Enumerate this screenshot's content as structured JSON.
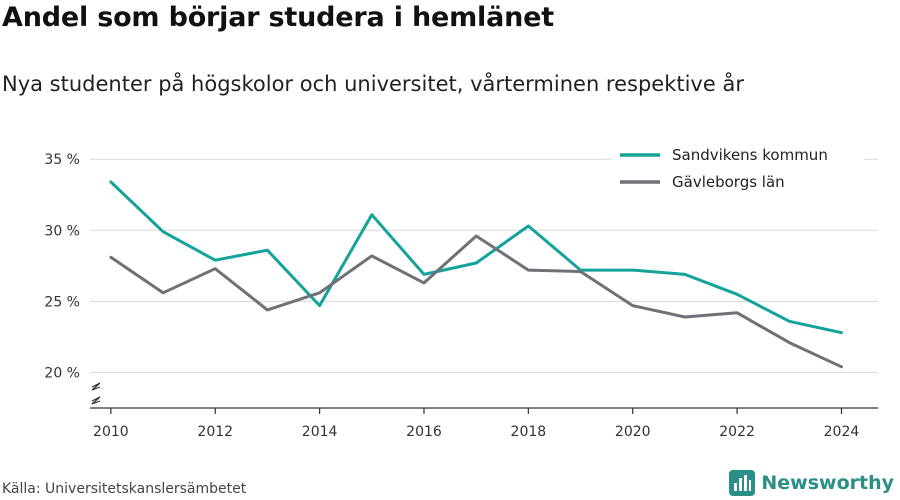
{
  "header": {
    "title": "Andel som börjar studera i hemlänet",
    "subtitle": "Nya studenter på högskolor och universitet, vårterminen respektive år"
  },
  "footer": {
    "source": "Källa: Universitetskanslersämbetet",
    "brand": "Newsworthy"
  },
  "chart_data": {
    "type": "line",
    "title": "Andel som börjar studera i hemlänet",
    "subtitle": "Nya studenter på högskolor och universitet, vårterminen respektive år",
    "xlabel": "",
    "ylabel": "",
    "x": [
      2010,
      2011,
      2012,
      2013,
      2014,
      2015,
      2016,
      2017,
      2018,
      2019,
      2020,
      2021,
      2022,
      2023,
      2024
    ],
    "x_ticks": [
      "2010",
      "2012",
      "2014",
      "2016",
      "2018",
      "2020",
      "2022",
      "2024"
    ],
    "y_ticks": [
      "35 %",
      "30 %",
      "25 %",
      "20 %"
    ],
    "ylim": [
      17.5,
      36
    ],
    "xlim": [
      2009.6,
      2024.7
    ],
    "grid": true,
    "legend_position": "top-right",
    "series": [
      {
        "name": "Sandvikens kommun",
        "color": "#13a39a",
        "values": [
          33.4,
          29.9,
          27.9,
          28.6,
          24.7,
          31.1,
          26.9,
          27.7,
          30.3,
          27.2,
          27.2,
          26.9,
          25.5,
          23.6,
          22.8
        ]
      },
      {
        "name": "Gävleborgs län",
        "color": "#707077",
        "values": [
          28.1,
          25.6,
          27.3,
          24.4,
          25.6,
          28.2,
          26.3,
          29.6,
          27.2,
          27.1,
          24.7,
          23.9,
          24.2,
          22.1,
          20.4
        ]
      }
    ]
  }
}
